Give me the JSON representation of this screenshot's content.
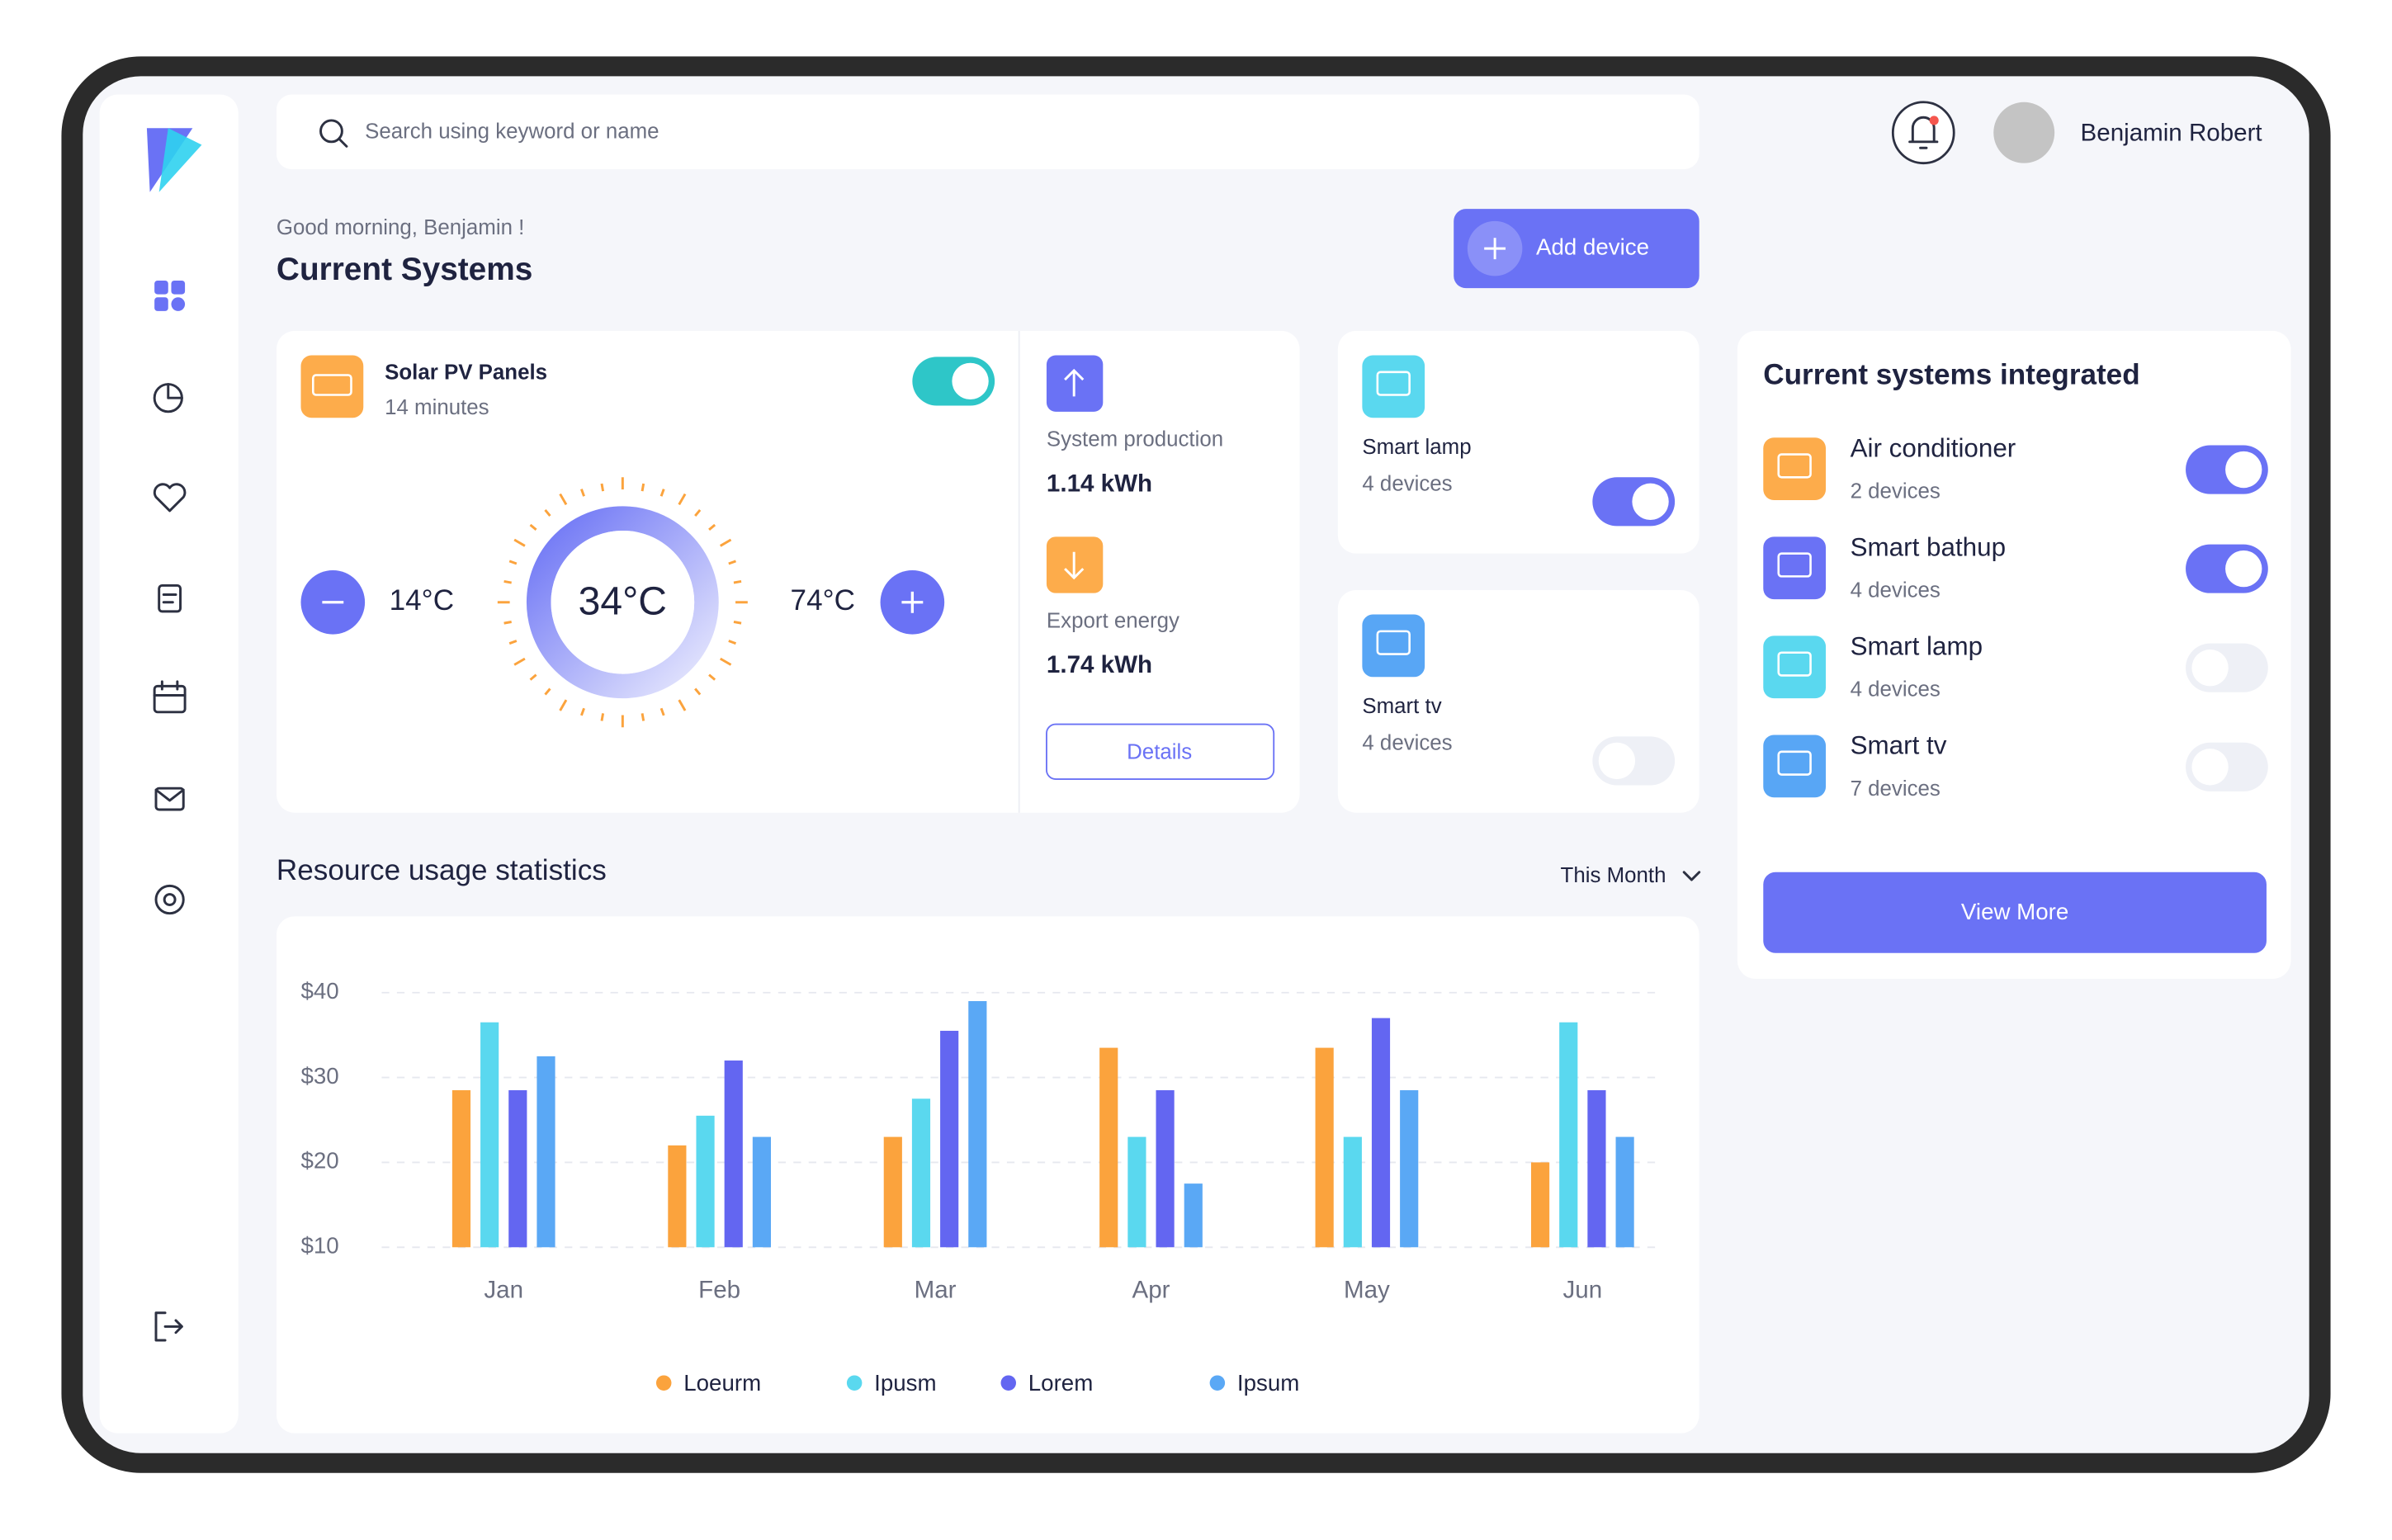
{
  "search_placeholder": "Search using keyword or name",
  "user_name": "Benjamin Robert",
  "greeting": "Good morning, Benjamin !",
  "title": "Current Systems",
  "add_device": "Add device",
  "solar": {
    "name": "Solar PV Panels",
    "time": "14 minutes",
    "on": true,
    "low": "14°C",
    "current": "34°C",
    "high": "74°C"
  },
  "production": {
    "label": "System production",
    "value": "1.14 kWh"
  },
  "export": {
    "label": "Export energy",
    "value": "1.74 kWh"
  },
  "details": "Details",
  "devices": [
    {
      "name": "Smart lamp",
      "count": "4 devices",
      "on": true,
      "color": "#5ad8ef"
    },
    {
      "name": "Smart tv",
      "count": "4 devices",
      "on": false,
      "color": "#58a6f5"
    }
  ],
  "integrated": {
    "title": "Current systems integrated",
    "items": [
      {
        "name": "Air conditioner",
        "count": "2 devices",
        "on": true,
        "color": "#fdac4b"
      },
      {
        "name": "Smart bathup",
        "count": "4 devices",
        "on": true,
        "color": "#6a72f5"
      },
      {
        "name": "Smart lamp",
        "count": "4 devices",
        "on": false,
        "color": "#5ad8ef"
      },
      {
        "name": "Smart tv",
        "count": "7 devices",
        "on": false,
        "color": "#58a6f5"
      }
    ],
    "button": "View More"
  },
  "stats": {
    "title": "Resource usage statistics",
    "period": "This Month"
  },
  "chart_data": {
    "type": "bar",
    "categories": [
      "Jan",
      "Feb",
      "Mar",
      "Apr",
      "May",
      "Jun"
    ],
    "series": [
      {
        "name": "Loeurm",
        "color": "#fba33d",
        "values": [
          28.5,
          22,
          23,
          33.5,
          33.5,
          20
        ]
      },
      {
        "name": "Ipusm",
        "color": "#5ad8ef",
        "values": [
          36.5,
          25.5,
          27.5,
          23,
          23,
          36.5
        ]
      },
      {
        "name": "Lorem",
        "color": "#6366f1",
        "values": [
          28.5,
          32,
          35.5,
          28.5,
          37,
          28.5
        ]
      },
      {
        "name": "Ipsum",
        "color": "#5aa8f5",
        "values": [
          32.5,
          23,
          39,
          17.5,
          28.5,
          23
        ]
      }
    ],
    "ylim": [
      10,
      40
    ],
    "yticks": [
      {
        "value": 10,
        "label": "$10"
      },
      {
        "value": 20,
        "label": "$20"
      },
      {
        "value": 30,
        "label": "$30"
      },
      {
        "value": 40,
        "label": "$40"
      }
    ],
    "grid": true
  }
}
